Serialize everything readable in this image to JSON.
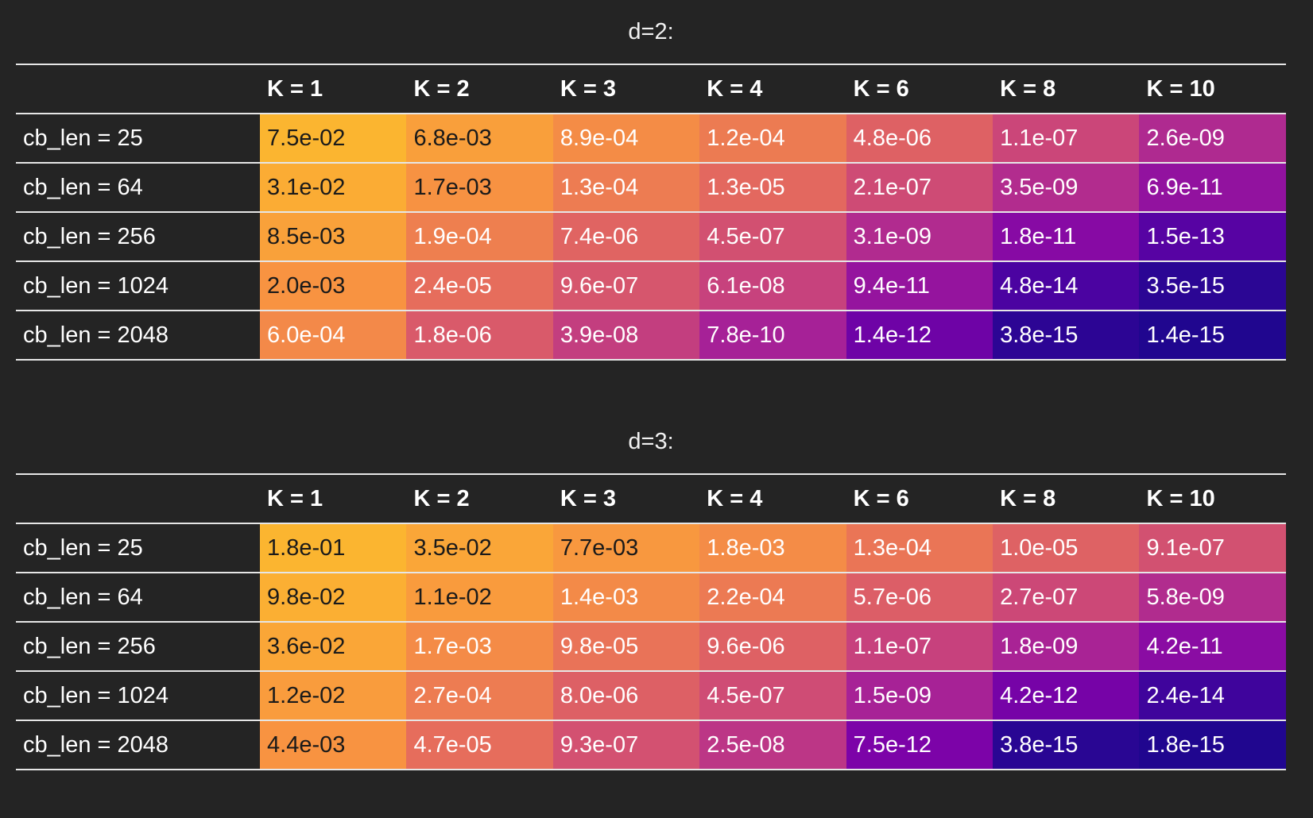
{
  "chart_data": [
    {
      "type": "heatmap",
      "title": "d=2:",
      "columns": [
        "K = 1",
        "K = 2",
        "K = 3",
        "K = 4",
        "K = 6",
        "K = 8",
        "K = 10"
      ],
      "rows": [
        "cb_len = 25",
        "cb_len = 64",
        "cb_len = 256",
        "cb_len = 1024",
        "cb_len = 2048"
      ],
      "values": [
        [
          "7.5e-02",
          "6.8e-03",
          "8.9e-04",
          "1.2e-04",
          "4.8e-06",
          "1.1e-07",
          "2.6e-09"
        ],
        [
          "3.1e-02",
          "1.7e-03",
          "1.3e-04",
          "1.3e-05",
          "2.1e-07",
          "3.5e-09",
          "6.9e-11"
        ],
        [
          "8.5e-03",
          "1.9e-04",
          "7.4e-06",
          "4.5e-07",
          "3.1e-09",
          "1.8e-11",
          "1.5e-13"
        ],
        [
          "2.0e-03",
          "2.4e-05",
          "9.6e-07",
          "6.1e-08",
          "9.4e-11",
          "4.8e-14",
          "3.5e-15"
        ],
        [
          "6.0e-04",
          "1.8e-06",
          "3.9e-08",
          "7.8e-10",
          "1.4e-12",
          "3.8e-15",
          "1.4e-15"
        ]
      ],
      "colorscale": "plasma",
      "color_scale_type": "log"
    },
    {
      "type": "heatmap",
      "title": "d=3:",
      "columns": [
        "K = 1",
        "K = 2",
        "K = 3",
        "K = 4",
        "K = 6",
        "K = 8",
        "K = 10"
      ],
      "rows": [
        "cb_len = 25",
        "cb_len = 64",
        "cb_len = 256",
        "cb_len = 1024",
        "cb_len = 2048"
      ],
      "values": [
        [
          "1.8e-01",
          "3.5e-02",
          "7.7e-03",
          "1.8e-03",
          "1.3e-04",
          "1.0e-05",
          "9.1e-07"
        ],
        [
          "9.8e-02",
          "1.1e-02",
          "1.4e-03",
          "2.2e-04",
          "5.7e-06",
          "2.7e-07",
          "5.8e-09"
        ],
        [
          "3.6e-02",
          "1.7e-03",
          "9.8e-05",
          "9.6e-06",
          "1.1e-07",
          "1.8e-09",
          "4.2e-11"
        ],
        [
          "1.2e-02",
          "2.7e-04",
          "8.0e-06",
          "4.5e-07",
          "1.5e-09",
          "4.2e-12",
          "2.4e-14"
        ],
        [
          "4.4e-03",
          "4.7e-05",
          "9.3e-07",
          "2.5e-08",
          "7.5e-12",
          "3.8e-15",
          "1.8e-15"
        ]
      ],
      "colorscale": "plasma",
      "color_scale_type": "log"
    }
  ],
  "colors": {
    "background": "#242424",
    "text": "#ffffff",
    "rule": "#e6e6e6",
    "dark_cell_text": "#1a1a1a"
  }
}
